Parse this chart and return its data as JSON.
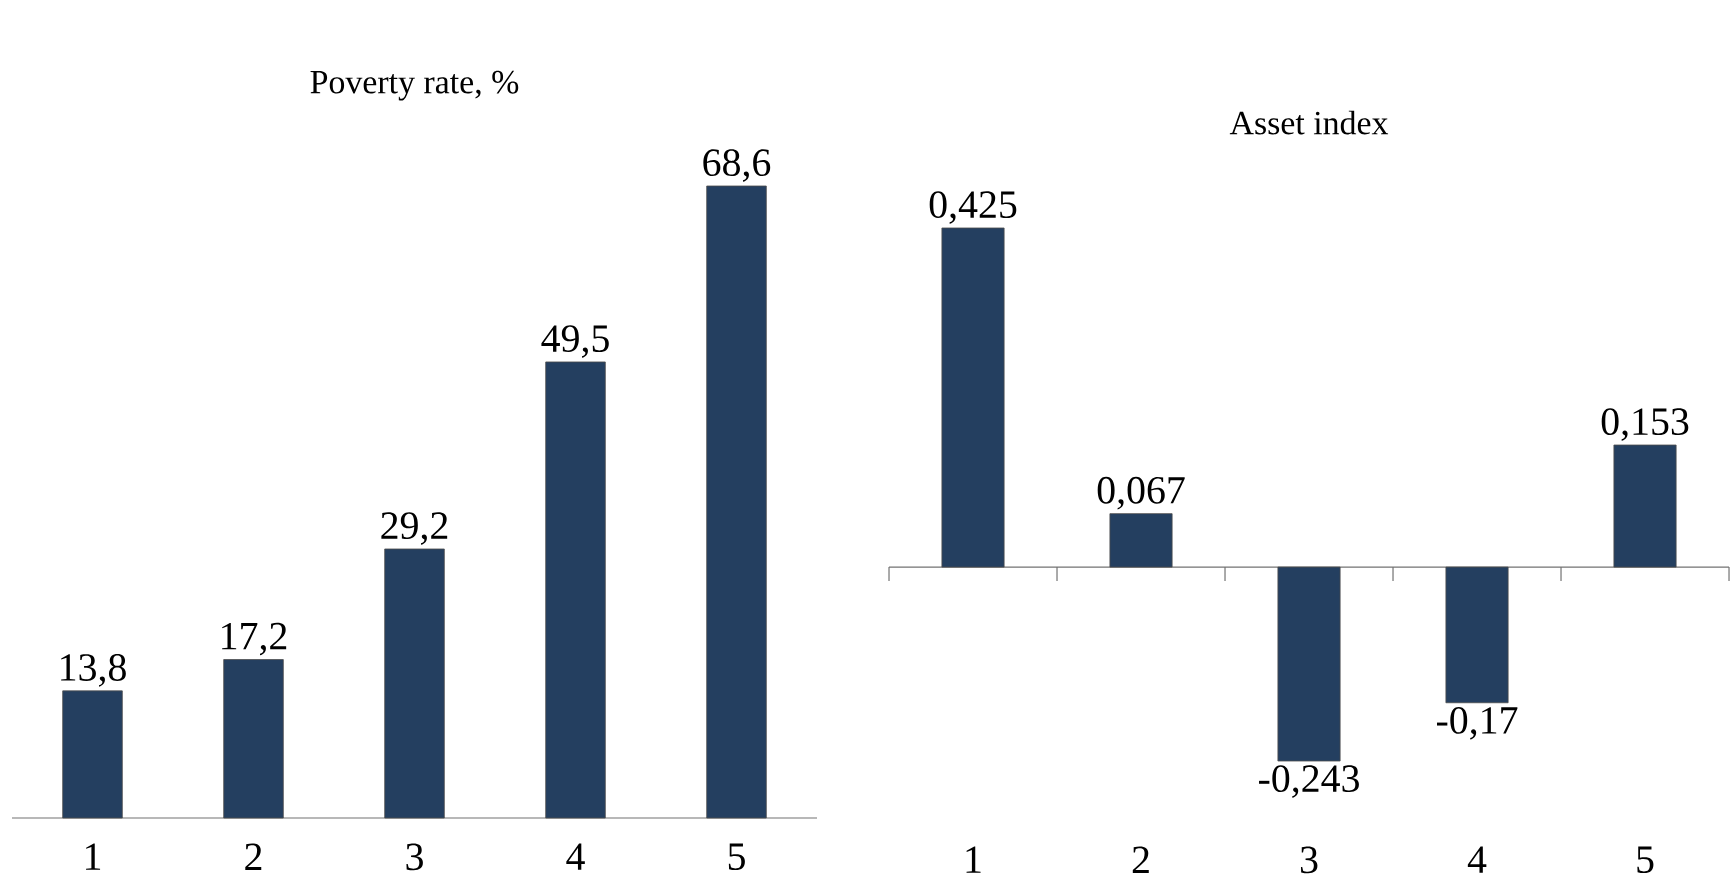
{
  "chart_data": [
    {
      "type": "bar",
      "title": "Poverty rate, %",
      "categories": [
        "1",
        "2",
        "3",
        "4",
        "5"
      ],
      "values": [
        13.8,
        17.2,
        29.2,
        49.5,
        68.6
      ],
      "value_labels": [
        "13,8",
        "17,2",
        "29,2",
        "49,5",
        "68,6"
      ],
      "color": "#243f60"
    },
    {
      "type": "bar",
      "title": "Asset index",
      "categories": [
        "1",
        "2",
        "3",
        "4",
        "5"
      ],
      "values": [
        0.425,
        0.067,
        -0.243,
        -0.17,
        0.153
      ],
      "value_labels": [
        "0,425",
        "0,067",
        "-0,243",
        "-0,17",
        "0,153"
      ],
      "color": "#243f60"
    }
  ]
}
